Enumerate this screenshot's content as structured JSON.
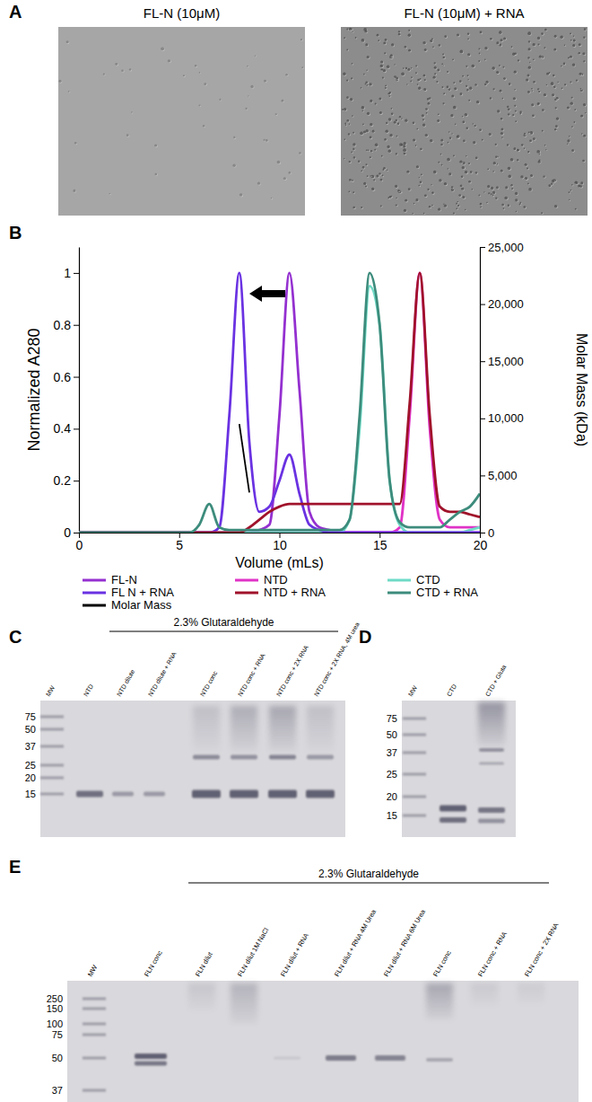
{
  "chart_data": {
    "type": "line",
    "x_label": "Volume (mLs)",
    "y_label": "Normalized A280",
    "y2_label": "Molar Mass (kDa)",
    "x": [
      0,
      0.5,
      1,
      1.5,
      2,
      2.5,
      3,
      3.5,
      4,
      4.5,
      5,
      5.5,
      6,
      6.5,
      7,
      7.5,
      8,
      8.5,
      9,
      9.5,
      10,
      10.5,
      11,
      11.5,
      12,
      12.5,
      13,
      13.5,
      14,
      14.5,
      15,
      15.5,
      16,
      16.5,
      17,
      17.5,
      18,
      18.5,
      19,
      19.5,
      20
    ],
    "xlim": [
      0,
      20
    ],
    "xticks": [
      0,
      5,
      10,
      15,
      20
    ],
    "ylim": [
      0,
      1.1
    ],
    "yticks": [
      0,
      0.2,
      0.4,
      0.6,
      0.8,
      1
    ],
    "y2lim": [
      0,
      25000
    ],
    "y2ticks": [
      0,
      {
        "value": 5000,
        "label": "5,000"
      },
      {
        "value": 10000,
        "label": "10,000"
      },
      {
        "value": 15000,
        "label": "15,000"
      },
      {
        "value": 20000,
        "label": "20,000"
      },
      {
        "value": 25000,
        "label": "25,000"
      }
    ],
    "grid": false,
    "legend": "bottom",
    "series": [
      {
        "name": "FL-N",
        "color": "#9430d0",
        "values": [
          0,
          0,
          0,
          0,
          0,
          0,
          0,
          0,
          0,
          0,
          0,
          0,
          0,
          0,
          0,
          0,
          0,
          0,
          0.01,
          0.03,
          0.45,
          1,
          0.55,
          0.08,
          0.02,
          0.01,
          0,
          0,
          0,
          0,
          0,
          0,
          0,
          0,
          0,
          0,
          0,
          0,
          0,
          0,
          0
        ]
      },
      {
        "name": "NTD",
        "color": "#e033c6",
        "values": [
          0,
          0,
          0,
          0,
          0,
          0,
          0,
          0,
          0,
          0,
          0,
          0,
          0,
          0,
          0,
          0,
          0,
          0,
          0,
          0,
          0,
          0,
          0,
          0,
          0,
          0,
          0,
          0,
          0,
          0,
          0,
          0,
          0.02,
          0.45,
          1,
          0.4,
          0.05,
          0.02,
          0.02,
          0.02,
          0.02
        ]
      },
      {
        "name": "CTD",
        "color": "#6fdac6",
        "values": [
          0,
          0,
          0,
          0,
          0,
          0,
          0,
          0,
          0,
          0,
          0,
          0,
          0,
          0,
          0,
          0,
          0,
          0,
          0,
          0,
          0,
          0,
          0,
          0,
          0,
          0,
          0,
          0.05,
          0.4,
          0.95,
          0.8,
          0.2,
          0.03,
          0,
          0,
          0,
          0,
          0,
          0,
          0.01,
          0.02
        ]
      },
      {
        "name": "FL N + RNA",
        "color": "#6a32e2",
        "values": [
          0,
          0,
          0,
          0,
          0,
          0,
          0,
          0,
          0,
          0,
          0,
          0,
          0,
          0,
          0.02,
          0.45,
          1,
          0.35,
          0.08,
          0.1,
          0.2,
          0.3,
          0.15,
          0.03,
          0.01,
          0,
          0,
          0,
          0,
          0,
          0,
          0,
          0,
          0,
          0,
          0,
          0,
          0,
          0,
          0,
          0
        ]
      },
      {
        "name": "NTD + RNA",
        "color": "#a0122a",
        "values": [
          0,
          0,
          0,
          0,
          0,
          0,
          0,
          0,
          0,
          0,
          0,
          0,
          0,
          0,
          0,
          0,
          0,
          0.02,
          0.05,
          0.08,
          0.1,
          0.11,
          0.11,
          0.11,
          0.11,
          0.11,
          0.11,
          0.11,
          0.11,
          0.11,
          0.11,
          0.11,
          0.11,
          0.5,
          1,
          0.45,
          0.1,
          0.08,
          0.08,
          0.07,
          0.06
        ]
      },
      {
        "name": "CTD + RNA",
        "color": "#3d8c7c",
        "values": [
          0,
          0,
          0,
          0,
          0,
          0,
          0,
          0,
          0,
          0,
          0,
          0,
          0.03,
          0.11,
          0.02,
          0.01,
          0.01,
          0.01,
          0.01,
          0.01,
          0.01,
          0.01,
          0.01,
          0.01,
          0.01,
          0.01,
          0.01,
          0.05,
          0.45,
          1,
          0.8,
          0.2,
          0.04,
          0.02,
          0.02,
          0.02,
          0.02,
          0.05,
          0.08,
          0.1,
          0.15
        ]
      },
      {
        "name": "Molar Mass",
        "color": "#000000",
        "axis": "y2",
        "values": [
          null,
          null,
          null,
          null,
          null,
          null,
          null,
          null,
          null,
          null,
          null,
          null,
          null,
          null,
          null,
          null,
          9500,
          3500,
          null,
          null,
          null,
          null,
          null,
          null,
          null,
          null,
          null,
          null,
          null,
          null,
          null,
          null,
          null,
          null,
          null,
          null,
          null,
          null,
          null,
          null,
          null
        ]
      }
    ]
  },
  "figure": {
    "A": {
      "letter": "A",
      "images": [
        {
          "label": "FL-N (10μM)"
        },
        {
          "label": "FL-N (10μM) + RNA"
        }
      ]
    },
    "B": {
      "letter": "B"
    },
    "C": {
      "letter": "C",
      "header": "2.3% Glutaraldehyde",
      "lanes": [
        "MW",
        "NTD",
        "NTD dilute",
        "NTD dilute + RNA",
        "NTD conc",
        "NTD conc + RNA",
        "NTD conc + 2X RNA",
        "NTD conc + 2X RNA, 4M urea"
      ],
      "ladder": [
        75,
        50,
        37,
        25,
        20,
        15
      ]
    },
    "D": {
      "letter": "D",
      "lanes": [
        "MW",
        "CTD",
        "CTD + Gluta"
      ],
      "ladder": [
        75,
        50,
        37,
        25,
        20,
        15
      ]
    },
    "E": {
      "letter": "E",
      "header": "2.3% Glutaraldehyde",
      "lanes": [
        "MW",
        "FLN conc",
        "FLN dilut",
        "FLN dilut 1M NaCl",
        "FLN dilut + RNA",
        "FLN dilut + RNA 4M Urea",
        "FLN dilut + RNA 6M Urea",
        "FLN conc",
        "FLN conc + RNA",
        "FLN conc + 2X RNA"
      ],
      "ladder": [
        250,
        150,
        100,
        75,
        50,
        37
      ]
    }
  }
}
